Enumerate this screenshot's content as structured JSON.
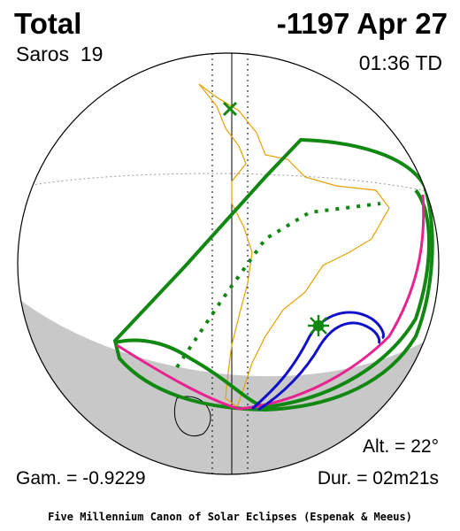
{
  "header": {
    "title": "Total",
    "date": "-1197 Apr 27",
    "saros": "Saros  19",
    "time": "01:36 TD"
  },
  "stats": {
    "altitude": "Alt. = 22°",
    "gamma": "Gam. = -0.9229",
    "duration": "Dur. = 02m21s"
  },
  "footer": {
    "credit": "Five Millennium Canon of Solar Eclipses (Espenak & Meeus)"
  }
}
